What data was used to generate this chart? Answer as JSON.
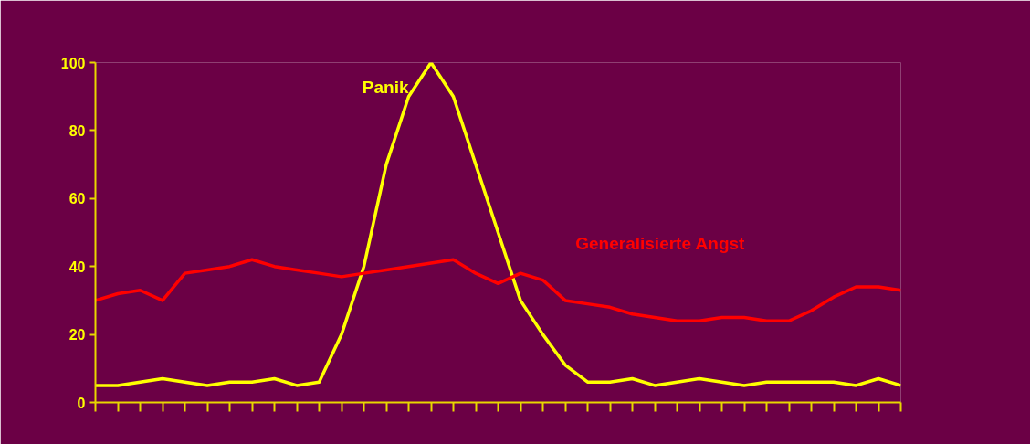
{
  "chart_data": {
    "type": "line",
    "categories": [
      null,
      null,
      null,
      null,
      null,
      null,
      null,
      null,
      null,
      null,
      null,
      null,
      null,
      null,
      null,
      null,
      null,
      null,
      null,
      null,
      null,
      null,
      null,
      null,
      null,
      null,
      null,
      null,
      null,
      null,
      null,
      null,
      null,
      null,
      null,
      null,
      null
    ],
    "series": [
      {
        "name": "Panik",
        "color": "#ffff00",
        "values": [
          5,
          5,
          6,
          7,
          6,
          5,
          6,
          6,
          7,
          5,
          6,
          20,
          40,
          70,
          90,
          100,
          90,
          70,
          50,
          30,
          20,
          11,
          6,
          6,
          7,
          5,
          6,
          7,
          6,
          5,
          6,
          6,
          6,
          6,
          5,
          7,
          5
        ]
      },
      {
        "name": "Generalisierte Angst",
        "color": "#ff0000",
        "values": [
          30,
          32,
          33,
          30,
          38,
          39,
          40,
          42,
          40,
          39,
          38,
          37,
          38,
          39,
          40,
          41,
          42,
          38,
          35,
          38,
          36,
          30,
          29,
          28,
          26,
          25,
          24,
          24,
          25,
          25,
          24,
          24,
          27,
          31,
          34,
          34,
          33
        ]
      }
    ],
    "ylim": [
      0,
      100
    ],
    "yticks": [
      0,
      20,
      40,
      60,
      80,
      100
    ],
    "tick_labels": "y",
    "grid": false,
    "legend": false,
    "marker": "none",
    "line_style": "solid"
  }
}
